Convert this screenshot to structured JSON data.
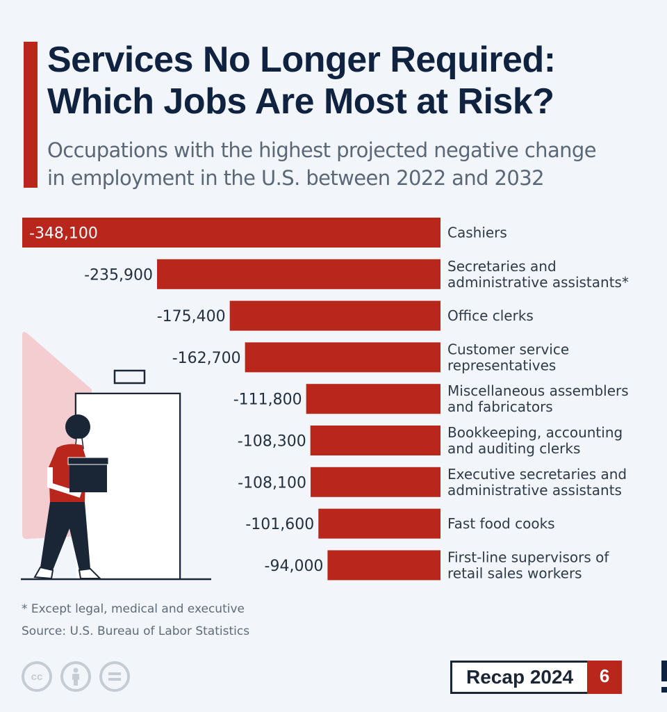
{
  "header": {
    "title_line1": "Services No Longer Required:",
    "title_line2": "Which Jobs Are Most at Risk?",
    "subtitle_line1": "Occupations with the highest projected negative change",
    "subtitle_line2": "in employment in the U.S. between 2022 and 2032"
  },
  "colors": {
    "accent": "#b8261c",
    "title": "#0f2240",
    "background": "#f2f5f9",
    "illustration_pink": "#f4cdd0"
  },
  "chart_data": {
    "type": "bar",
    "orientation": "horizontal",
    "title": "Services No Longer Required: Which Jobs Are Most at Risk?",
    "subtitle": "Occupations with the highest projected negative change in employment in the U.S. between 2022 and 2032",
    "xlabel": "",
    "ylabel": "",
    "xlim": [
      -348100,
      0
    ],
    "grid": false,
    "legend": "none",
    "categories": [
      [
        "Cashiers"
      ],
      [
        "Secretaries and",
        "administrative assistants*"
      ],
      [
        "Office clerks"
      ],
      [
        "Customer service",
        "representatives"
      ],
      [
        "Miscellaneous assemblers",
        "and fabricators"
      ],
      [
        "Bookkeeping, accounting",
        "and auditing clerks"
      ],
      [
        "Executive secretaries and",
        "administrative assistants"
      ],
      [
        "Fast food cooks"
      ],
      [
        "First-line supervisors of",
        "retail sales workers"
      ]
    ],
    "values": [
      -348100,
      -235900,
      -175400,
      -162700,
      -111800,
      -108300,
      -108100,
      -101600,
      -94000
    ],
    "value_labels": [
      "-348,100",
      "-235,900",
      "-175,400",
      "-162,700",
      "-111,800",
      "-108,300",
      "-108,100",
      "-101,600",
      "-94,000"
    ]
  },
  "footer": {
    "note": "* Except legal, medical and executive",
    "source": "Source: U.S. Bureau of Labor Statistics",
    "license_icons": [
      "cc-icon",
      "attribution-icon",
      "no-derivatives-icon"
    ],
    "cc_text": "cc",
    "recap_label": "Recap 2024",
    "recap_number": "6"
  }
}
